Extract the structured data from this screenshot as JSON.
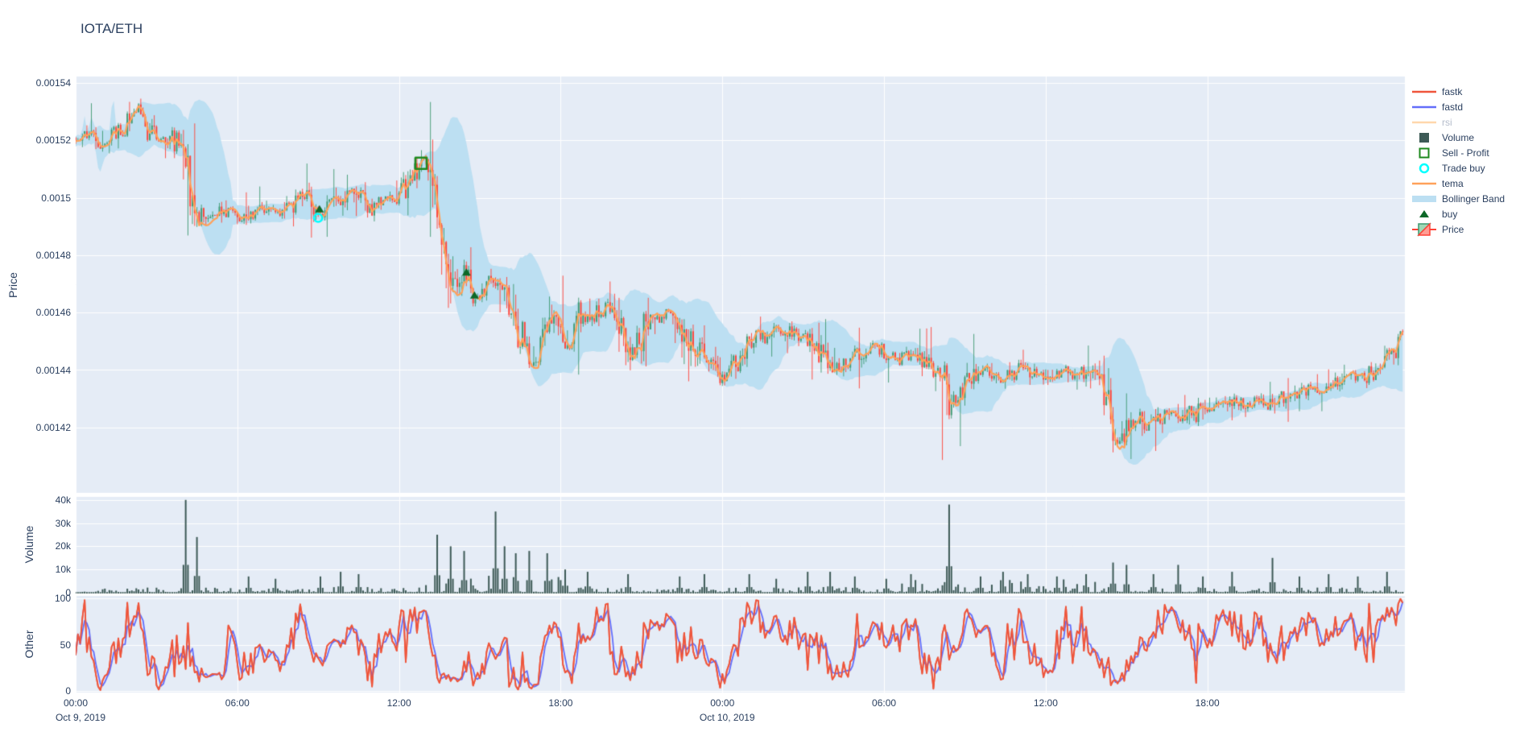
{
  "title": "IOTA/ETH",
  "colors": {
    "paper_bg": "#ffffff",
    "plot_bg": "#E5ECF6",
    "grid": "#ffffff",
    "text": "#2a3f5f",
    "muted_text": "#b5bdcc",
    "candle_up": "#3D9970",
    "candle_down": "#FF4136",
    "bollinger_fill": "#BCDFF2",
    "tema": "#FFA15A",
    "fastk": "#EF553B",
    "fastd": "#636EFA",
    "rsi": "#FFD7AC",
    "volume_bar": "#3D5A56",
    "buy_marker": "#0D6828",
    "sell_profit_marker": "#1F8A1F",
    "trade_buy_marker": "#00FFFF"
  },
  "axes": {
    "price_title": "Price",
    "volume_title": "Volume",
    "other_title": "Other",
    "price_ticks": [
      {
        "label": "0.00154",
        "value": 0.00154
      },
      {
        "label": "0.00152",
        "value": 0.00152
      },
      {
        "label": "0.0015",
        "value": 0.0015
      },
      {
        "label": "0.00148",
        "value": 0.00148
      },
      {
        "label": "0.00146",
        "value": 0.00146
      },
      {
        "label": "0.00144",
        "value": 0.00144
      },
      {
        "label": "0.00142",
        "value": 0.00142
      }
    ],
    "volume_ticks": [
      {
        "label": "40k",
        "value": 40000
      },
      {
        "label": "30k",
        "value": 30000
      },
      {
        "label": "20k",
        "value": 20000
      },
      {
        "label": "10k",
        "value": 10000
      },
      {
        "label": "0",
        "value": 0
      }
    ],
    "other_ticks": [
      {
        "label": "100",
        "value": 100
      },
      {
        "label": "50",
        "value": 50
      },
      {
        "label": "0",
        "value": 0
      }
    ],
    "x_ticks": [
      {
        "t": 0,
        "label": "00:00",
        "date": "Oct 9, 2019"
      },
      {
        "t": 6,
        "label": "06:00",
        "date": ""
      },
      {
        "t": 12,
        "label": "12:00",
        "date": ""
      },
      {
        "t": 18,
        "label": "18:00",
        "date": ""
      },
      {
        "t": 24,
        "label": "00:00",
        "date": "Oct 10, 2019"
      },
      {
        "t": 30,
        "label": "06:00",
        "date": ""
      },
      {
        "t": 36,
        "label": "12:00",
        "date": ""
      },
      {
        "t": 42,
        "label": "18:00",
        "date": ""
      }
    ]
  },
  "legend": [
    {
      "id": "fastk",
      "label": "fastk",
      "swatch": "line",
      "color": "#EF553B",
      "muted": false
    },
    {
      "id": "fastd",
      "label": "fastd",
      "swatch": "line",
      "color": "#636EFA",
      "muted": false
    },
    {
      "id": "rsi",
      "label": "rsi",
      "swatch": "line",
      "color": "#FFD7AC",
      "muted": true
    },
    {
      "id": "volume",
      "label": "Volume",
      "swatch": "square-fill",
      "color": "#3D5A56",
      "muted": false
    },
    {
      "id": "sell-profit",
      "label": "Sell - Profit",
      "swatch": "square-open",
      "color": "#1F8A1F",
      "muted": false
    },
    {
      "id": "trade-buy",
      "label": "Trade buy",
      "swatch": "circle-open",
      "color": "#00FFFF",
      "muted": false
    },
    {
      "id": "tema",
      "label": "tema",
      "swatch": "line",
      "color": "#FFA15A",
      "muted": false
    },
    {
      "id": "bollinger-band",
      "label": "Bollinger Band",
      "swatch": "band",
      "color": "#BCDFF2",
      "muted": false
    },
    {
      "id": "buy",
      "label": "buy",
      "swatch": "triangle",
      "color": "#0D6828",
      "muted": false
    },
    {
      "id": "price",
      "label": "Price",
      "swatch": "candle",
      "color": "#3D9970",
      "muted": false
    }
  ],
  "chart_data": {
    "type": "candlestick-with-indicators",
    "symbol": "IOTA/ETH",
    "x_start": "2019-10-09 00:00",
    "hours_span": 49.33,
    "candle_minutes": 5,
    "price_range": [
      0.0013972,
      0.0015422
    ],
    "volume_range": [
      0,
      41500
    ],
    "other_range": [
      0,
      100
    ],
    "indicators": {
      "bollinger": {
        "window": 20,
        "dev": 2
      },
      "tema": {
        "period": 9
      },
      "stochastic_fast": {
        "k": 14,
        "d": 3
      },
      "rsi_visible": false
    },
    "noise_seed": 20191009,
    "price_keyframes": [
      [
        0,
        0.001521
      ],
      [
        0.5,
        0.001522
      ],
      [
        0.9,
        0.001518
      ],
      [
        1.3,
        0.00152
      ],
      [
        1.7,
        0.001524
      ],
      [
        2.0,
        0.001527
      ],
      [
        2.3,
        0.00153
      ],
      [
        2.6,
        0.001525
      ],
      [
        2.9,
        0.001522
      ],
      [
        3.2,
        0.001521
      ],
      [
        3.5,
        0.001521
      ],
      [
        3.8,
        0.001519
      ],
      [
        4.1,
        0.001512
      ],
      [
        4.35,
        0.001497
      ],
      [
        4.6,
        0.001494
      ],
      [
        5.0,
        0.001495
      ],
      [
        5.5,
        0.001496
      ],
      [
        6.0,
        0.001493
      ],
      [
        6.5,
        0.001494
      ],
      [
        7.0,
        0.001496
      ],
      [
        7.5,
        0.001495
      ],
      [
        8.0,
        0.001497
      ],
      [
        8.3,
        0.001501
      ],
      [
        8.6,
        0.001499
      ],
      [
        9.0,
        0.001493
      ],
      [
        9.3,
        0.001495
      ],
      [
        9.6,
        0.001498
      ],
      [
        10.0,
        0.0015
      ],
      [
        10.3,
        0.001502
      ],
      [
        10.6,
        0.001499
      ],
      [
        11.0,
        0.001496
      ],
      [
        11.3,
        0.0015
      ],
      [
        11.6,
        0.001499
      ],
      [
        12.0,
        0.001501
      ],
      [
        12.4,
        0.001505
      ],
      [
        12.8,
        0.001511
      ],
      [
        13.0,
        0.001513
      ],
      [
        13.2,
        0.001509
      ],
      [
        13.4,
        0.001501
      ],
      [
        13.6,
        0.00149
      ],
      [
        13.8,
        0.00148
      ],
      [
        14.0,
        0.001472
      ],
      [
        14.2,
        0.00147
      ],
      [
        14.4,
        0.001474
      ],
      [
        14.6,
        0.001471
      ],
      [
        14.8,
        0.001465
      ],
      [
        15.0,
        0.001467
      ],
      [
        15.2,
        0.00147
      ],
      [
        15.5,
        0.001472
      ],
      [
        15.8,
        0.00147
      ],
      [
        16.1,
        0.001464
      ],
      [
        16.4,
        0.001454
      ],
      [
        16.7,
        0.001447
      ],
      [
        16.9,
        0.001443
      ],
      [
        17.2,
        0.001448
      ],
      [
        17.5,
        0.001454
      ],
      [
        17.8,
        0.001458
      ],
      [
        18.1,
        0.001451
      ],
      [
        18.4,
        0.001447
      ],
      [
        18.7,
        0.00146
      ],
      [
        19.1,
        0.001458
      ],
      [
        19.5,
        0.001461
      ],
      [
        19.9,
        0.001463
      ],
      [
        20.3,
        0.001452
      ],
      [
        20.6,
        0.001445
      ],
      [
        20.9,
        0.00145
      ],
      [
        21.3,
        0.001459
      ],
      [
        21.7,
        0.001457
      ],
      [
        22.1,
        0.001461
      ],
      [
        22.5,
        0.001455
      ],
      [
        22.9,
        0.001449
      ],
      [
        23.3,
        0.001446
      ],
      [
        23.7,
        0.001441
      ],
      [
        24.1,
        0.001438
      ],
      [
        24.5,
        0.001442
      ],
      [
        24.9,
        0.00145
      ],
      [
        25.3,
        0.001452
      ],
      [
        25.7,
        0.001452
      ],
      [
        26.1,
        0.001454
      ],
      [
        26.5,
        0.001453
      ],
      [
        27.0,
        0.001452
      ],
      [
        27.5,
        0.001447
      ],
      [
        28.0,
        0.001442
      ],
      [
        28.4,
        0.001441
      ],
      [
        28.8,
        0.001444
      ],
      [
        29.2,
        0.001446
      ],
      [
        29.6,
        0.001448
      ],
      [
        30.0,
        0.001446
      ],
      [
        30.4,
        0.001444
      ],
      [
        30.8,
        0.001446
      ],
      [
        31.2,
        0.001444
      ],
      [
        31.6,
        0.001442
      ],
      [
        32.0,
        0.00144
      ],
      [
        32.3,
        0.001436
      ],
      [
        32.45,
        0.001424
      ],
      [
        32.6,
        0.001431
      ],
      [
        32.9,
        0.001434
      ],
      [
        33.2,
        0.001437
      ],
      [
        33.6,
        0.00144
      ],
      [
        34.0,
        0.001438
      ],
      [
        34.4,
        0.001436
      ],
      [
        34.8,
        0.001439
      ],
      [
        35.2,
        0.001441
      ],
      [
        35.6,
        0.001439
      ],
      [
        36.0,
        0.001437
      ],
      [
        36.4,
        0.001439
      ],
      [
        36.8,
        0.001438
      ],
      [
        37.2,
        0.00144
      ],
      [
        37.6,
        0.001438
      ],
      [
        38.0,
        0.001437
      ],
      [
        38.3,
        0.00143
      ],
      [
        38.5,
        0.001416
      ],
      [
        38.7,
        0.001414
      ],
      [
        39.0,
        0.001419
      ],
      [
        39.4,
        0.001422
      ],
      [
        39.8,
        0.00142
      ],
      [
        40.2,
        0.001423
      ],
      [
        40.6,
        0.001425
      ],
      [
        41.0,
        0.001424
      ],
      [
        41.4,
        0.001426
      ],
      [
        41.8,
        0.001427
      ],
      [
        42.2,
        0.001426
      ],
      [
        42.6,
        0.001428
      ],
      [
        43.0,
        0.001429
      ],
      [
        43.4,
        0.001428
      ],
      [
        43.8,
        0.001429
      ],
      [
        44.2,
        0.001428
      ],
      [
        44.6,
        0.00143
      ],
      [
        45.0,
        0.001431
      ],
      [
        45.4,
        0.001432
      ],
      [
        45.8,
        0.001434
      ],
      [
        46.2,
        0.001433
      ],
      [
        46.6,
        0.001435
      ],
      [
        47.0,
        0.001436
      ],
      [
        47.4,
        0.001438
      ],
      [
        47.8,
        0.001437
      ],
      [
        48.2,
        0.00144
      ],
      [
        48.6,
        0.001443
      ],
      [
        49.0,
        0.001448
      ],
      [
        49.2,
        0.001452
      ],
      [
        49.33,
        0.00145
      ]
    ],
    "volume_spikes": [
      [
        4.1,
        40000
      ],
      [
        4.5,
        24000
      ],
      [
        6.4,
        7000
      ],
      [
        7.4,
        6000
      ],
      [
        9.1,
        7000
      ],
      [
        9.8,
        9000
      ],
      [
        10.5,
        8000
      ],
      [
        13.4,
        25000
      ],
      [
        13.9,
        20000
      ],
      [
        14.4,
        18000
      ],
      [
        15.6,
        35000
      ],
      [
        15.9,
        20000
      ],
      [
        16.3,
        17000
      ],
      [
        16.8,
        18000
      ],
      [
        17.5,
        17000
      ],
      [
        18.2,
        10000
      ],
      [
        19.0,
        9000
      ],
      [
        20.5,
        8000
      ],
      [
        22.4,
        7000
      ],
      [
        23.3,
        8000
      ],
      [
        25.0,
        8000
      ],
      [
        26.0,
        6000
      ],
      [
        27.2,
        9000
      ],
      [
        28.0,
        9000
      ],
      [
        28.9,
        7000
      ],
      [
        30.1,
        6000
      ],
      [
        31.0,
        8000
      ],
      [
        32.4,
        38000
      ],
      [
        33.6,
        7000
      ],
      [
        34.4,
        9000
      ],
      [
        35.3,
        8000
      ],
      [
        36.4,
        7000
      ],
      [
        37.5,
        8000
      ],
      [
        38.5,
        13000
      ],
      [
        39.0,
        12000
      ],
      [
        40.0,
        8000
      ],
      [
        40.9,
        12000
      ],
      [
        41.8,
        7000
      ],
      [
        42.9,
        9000
      ],
      [
        44.4,
        15000
      ],
      [
        45.4,
        7000
      ],
      [
        46.5,
        8000
      ],
      [
        47.6,
        7000
      ],
      [
        48.7,
        9000
      ]
    ],
    "markers": {
      "sell_profit": [
        [
          12.82,
          0.001512
        ]
      ],
      "trade_buy": [
        [
          9.0,
          0.001493
        ]
      ],
      "buy": [
        [
          9.05,
          0.001496
        ],
        [
          14.5,
          0.001474
        ],
        [
          14.8,
          0.001466
        ]
      ]
    }
  }
}
